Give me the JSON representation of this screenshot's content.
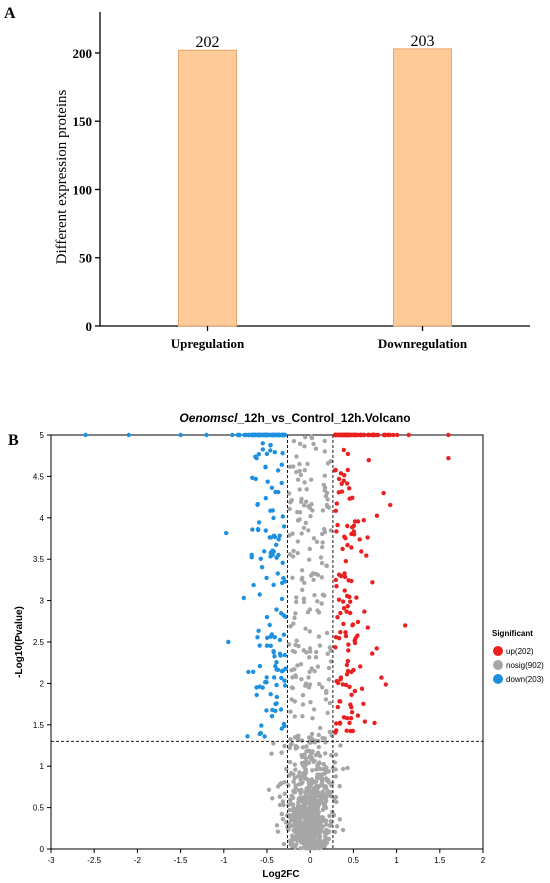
{
  "panels": {
    "a_label": "A",
    "b_label": "B"
  },
  "chart_data": [
    {
      "type": "bar",
      "categories": [
        "Upregulation",
        "Downregulation"
      ],
      "values": [
        202,
        203
      ],
      "data_labels": [
        "202",
        "203"
      ],
      "ylabel": "Different expression proteins",
      "ylim": [
        0,
        230
      ],
      "yticks": [
        0,
        50,
        100,
        150,
        200
      ],
      "ytick_labels": [
        "0",
        "50",
        "100",
        "150",
        "200"
      ],
      "bar_color": "#FFCC99",
      "bar_edge_color": "#E8A36A",
      "grid": false
    },
    {
      "type": "scatter",
      "title_italic": "Oenomscl",
      "title_rest": "_12h_vs_Control_12h.Volcano",
      "xlabel": "Log2FC",
      "ylabel": "-Log10(Pvalue)",
      "xlim": [
        -3,
        2
      ],
      "ylim": [
        0,
        5
      ],
      "xticks": [
        -3,
        -2.5,
        -2,
        -1.5,
        -1,
        -0.5,
        0,
        0.5,
        1,
        1.5,
        2
      ],
      "xtick_labels": [
        "-3",
        "-2.5",
        "-2",
        "-1.5",
        "-1",
        "-0.5",
        "0",
        "0.5",
        "1",
        "1.5",
        "2"
      ],
      "yticks": [
        0,
        0.5,
        1,
        1.5,
        2,
        2.5,
        3,
        3.5,
        4,
        4.5,
        5
      ],
      "ytick_labels": [
        "0",
        "0.5",
        "1",
        "1.5",
        "2",
        "2.5",
        "3",
        "3.5",
        "4",
        "4.5",
        "5"
      ],
      "threshold_lines": {
        "x": [
          -0.263,
          0.263
        ],
        "y": [
          1.301
        ]
      },
      "legend_title": "Significant",
      "legend_position": "right",
      "series": [
        {
          "name": "up(202)",
          "color": "#E8201F",
          "count": 202
        },
        {
          "name": "nosig(902)",
          "color": "#A6A6A6",
          "count": 902
        },
        {
          "name": "down(203)",
          "color": "#1E90E0",
          "count": 203
        }
      ],
      "grid": false
    }
  ]
}
